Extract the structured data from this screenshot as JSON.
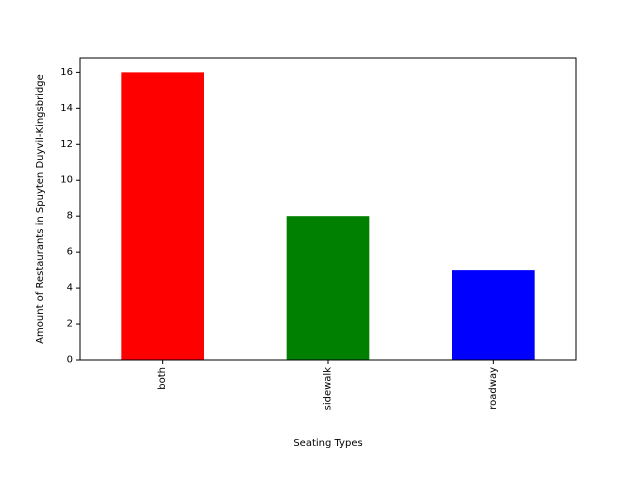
{
  "chart_data": {
    "type": "bar",
    "title": "",
    "xlabel": "Seating Types",
    "ylabel": "Amount of Restaurants in Spuyten Duyvil-Kingsbridge",
    "categories": [
      "both",
      "sidewalk",
      "roadway"
    ],
    "values": [
      16,
      8,
      5
    ],
    "colors": [
      "#ff0000",
      "#008000",
      "#0000ff"
    ],
    "ylim": [
      0,
      16.8
    ],
    "yticks": [
      0,
      2,
      4,
      6,
      8,
      10,
      12,
      14,
      16
    ],
    "xtick_rotation": "vertical",
    "grid": false,
    "legend": "none"
  }
}
